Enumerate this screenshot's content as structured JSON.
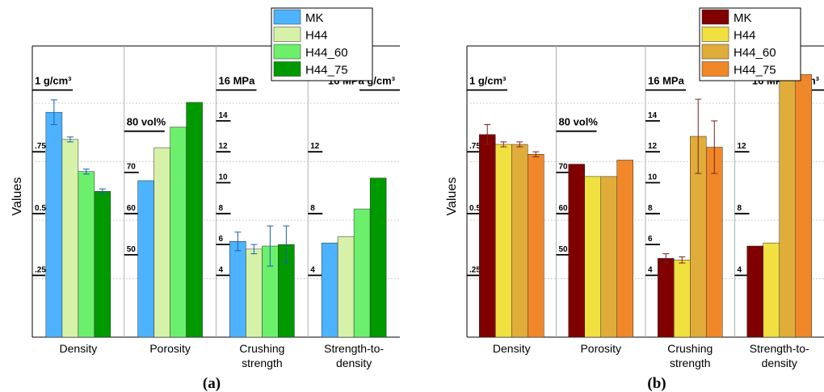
{
  "chart_data": [
    {
      "type": "bar",
      "panel_label": "(a)",
      "ylabel": "Values",
      "categories": [
        "Density",
        "Porosity",
        "Crushing strength",
        "Strength-to-density"
      ],
      "category_lines": [
        [
          "Density"
        ],
        [
          "Porosity"
        ],
        [
          "Crushing",
          "strength"
        ],
        [
          "Strength-to-",
          "density"
        ]
      ],
      "series": [
        {
          "name": "MK",
          "color": "#4db3ff",
          "values": [
            0.91,
            68,
            6.2,
            6.1
          ],
          "errors": [
            0.05,
            null,
            0.6,
            null
          ]
        },
        {
          "name": "H44",
          "color": "#d6f2a8",
          "values": [
            0.8,
            76,
            5.7,
            6.5
          ],
          "errors": [
            0.01,
            null,
            0.3,
            null
          ]
        },
        {
          "name": "H44_60",
          "color": "#6cf06c",
          "values": [
            0.67,
            81,
            5.9,
            8.3
          ],
          "errors": [
            0.01,
            null,
            1.3,
            null
          ]
        },
        {
          "name": "H44_75",
          "color": "#009a00",
          "values": [
            0.59,
            87,
            6.0,
            10.3
          ],
          "errors": [
            0.01,
            null,
            1.2,
            null
          ]
        }
      ],
      "units": [
        "1 g/cm³",
        "80 vol%",
        "16 MPa",
        "16 MPa g/cm³"
      ],
      "tick_labels": [
        [
          ".25",
          "0.5",
          ".75"
        ],
        [
          "50",
          "60",
          "70"
        ],
        [
          "4",
          "6",
          "8",
          "10",
          "12",
          "14"
        ],
        [
          "4",
          "8",
          "12"
        ]
      ]
    },
    {
      "type": "bar",
      "panel_label": "(b)",
      "ylabel": "Values",
      "categories": [
        "Density",
        "Porosity",
        "Crushing strength",
        "Strength-to-density"
      ],
      "category_lines": [
        [
          "Density"
        ],
        [
          "Porosity"
        ],
        [
          "Crushing",
          "strength"
        ],
        [
          "Strength-to-",
          "density"
        ]
      ],
      "series": [
        {
          "name": "MK",
          "color": "#800000",
          "values": [
            0.82,
            72,
            5.1,
            5.9
          ],
          "errors": [
            0.04,
            null,
            0.3,
            null
          ]
        },
        {
          "name": "H44",
          "color": "#f0e040",
          "values": [
            0.78,
            69,
            5.0,
            6.1
          ],
          "errors": [
            0.01,
            null,
            0.2,
            null
          ]
        },
        {
          "name": "H44_60",
          "color": "#e0ac3a",
          "values": [
            0.78,
            69,
            13.0,
            17.0
          ],
          "errors": [
            0.01,
            null,
            2.4,
            null
          ]
        },
        {
          "name": "H44_75",
          "color": "#f0882a",
          "values": [
            0.74,
            73,
            12.3,
            17.0
          ],
          "errors": [
            0.01,
            null,
            1.7,
            null
          ]
        }
      ],
      "units": [
        "1 g/cm³",
        "80 vol%",
        "16 MPa",
        "16 MPa g/cm³"
      ],
      "tick_labels": [
        [
          ".25",
          "0.5",
          ".75"
        ],
        [
          "50",
          "60",
          "70"
        ],
        [
          "4",
          "6",
          "8",
          "10",
          "12",
          "14"
        ],
        [
          "4",
          "8",
          "12"
        ]
      ]
    }
  ]
}
